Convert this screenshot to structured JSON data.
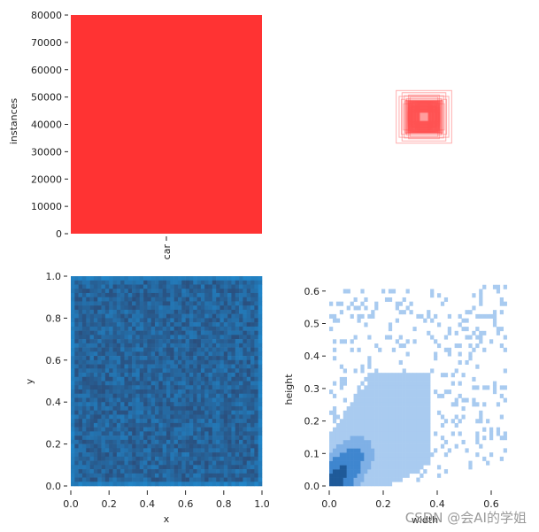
{
  "watermark": "CSDN @会AI的学姐",
  "chart_data": [
    {
      "type": "bar",
      "categories": [
        "car"
      ],
      "values": [
        80000
      ],
      "ylabel": "instances",
      "xlabel": "",
      "ylim": [
        0,
        80000
      ],
      "yticks": [
        0,
        10000,
        20000,
        30000,
        40000,
        50000,
        60000,
        70000,
        80000
      ],
      "color": "#ff3333"
    },
    {
      "type": "scatter",
      "description_kind": "bounding-box-overlay",
      "color": "#ff6b6b",
      "boxes_wh": [
        [
          0.38,
          0.36
        ],
        [
          0.3,
          0.33
        ],
        [
          0.27,
          0.29
        ],
        [
          0.24,
          0.25
        ],
        [
          0.22,
          0.21
        ],
        [
          0.18,
          0.19
        ],
        [
          0.16,
          0.15
        ],
        [
          0.13,
          0.14
        ],
        [
          0.11,
          0.11
        ],
        [
          0.09,
          0.1
        ],
        [
          0.2,
          0.17
        ],
        [
          0.26,
          0.22
        ],
        [
          0.31,
          0.24
        ],
        [
          0.21,
          0.3
        ],
        [
          0.34,
          0.28
        ],
        [
          0.15,
          0.2
        ],
        [
          0.12,
          0.08
        ],
        [
          0.08,
          0.12
        ],
        [
          0.28,
          0.18
        ],
        [
          0.19,
          0.27
        ]
      ]
    },
    {
      "type": "heatmap",
      "xlabel": "x",
      "ylabel": "y",
      "xlim": [
        0,
        1
      ],
      "ylim": [
        0,
        1
      ],
      "xticks": [
        0.0,
        0.2,
        0.4,
        0.6,
        0.8,
        1.0
      ],
      "yticks": [
        0.0,
        0.2,
        0.4,
        0.6,
        0.8,
        1.0
      ],
      "bins": 50,
      "color": "#1f77b4"
    },
    {
      "type": "heatmap",
      "xlabel": "width",
      "ylabel": "height",
      "xlim": [
        0,
        0.7
      ],
      "ylim": [
        0,
        0.65
      ],
      "xticks": [
        0.0,
        0.2,
        0.4,
        0.6
      ],
      "yticks": [
        0.0,
        0.1,
        0.2,
        0.3,
        0.4,
        0.5,
        0.6
      ],
      "color": "#1f77b4"
    }
  ]
}
